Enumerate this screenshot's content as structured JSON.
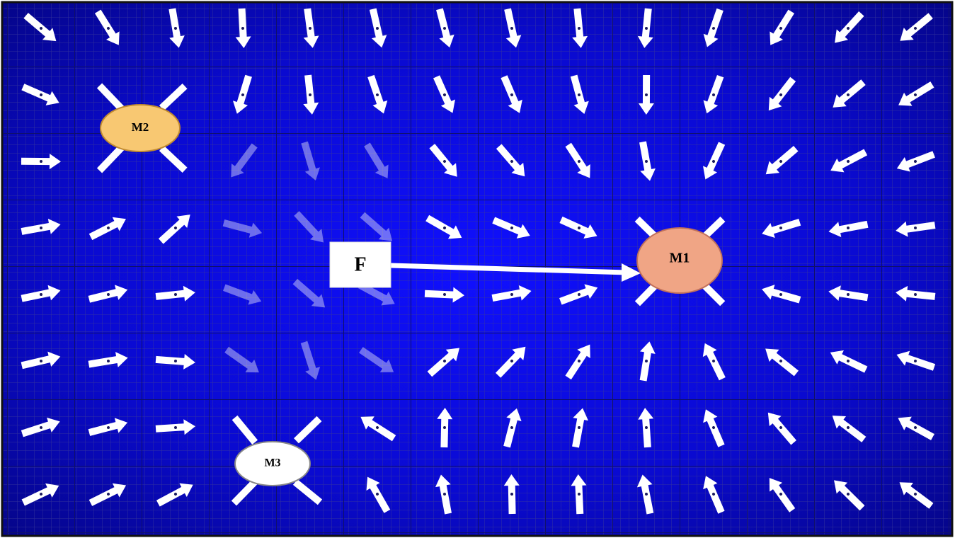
{
  "masses": [
    {
      "label": "M1"
    },
    {
      "label": "M2"
    },
    {
      "label": "M3"
    }
  ],
  "force": {
    "label": "F"
  }
}
